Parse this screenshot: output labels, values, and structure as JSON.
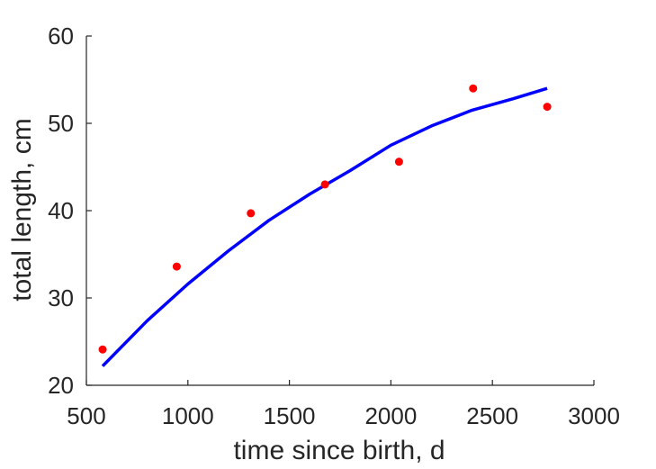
{
  "chart_data": {
    "type": "scatter",
    "title": "",
    "xlabel": "time since birth, d",
    "ylabel": "total length, cm",
    "xlim": [
      500,
      3000
    ],
    "ylim": [
      20,
      60
    ],
    "xticks": [
      500,
      1000,
      1500,
      2000,
      2500,
      3000
    ],
    "yticks": [
      20,
      30,
      40,
      50,
      60
    ],
    "grid": false,
    "legend": "none",
    "series": [
      {
        "type": "scatter",
        "color": "#ff0000",
        "x": [
          580,
          945,
          1310,
          1675,
          2040,
          2405,
          2770
        ],
        "y": [
          24.1,
          33.6,
          39.7,
          43.0,
          45.6,
          54.0,
          51.9
        ]
      },
      {
        "type": "line",
        "color": "#0000ff",
        "x": [
          580,
          800,
          1000,
          1200,
          1400,
          1600,
          1800,
          2000,
          2200,
          2400,
          2600,
          2770
        ],
        "y": [
          22.2,
          27.4,
          31.6,
          35.4,
          38.9,
          41.9,
          44.6,
          47.5,
          49.7,
          51.5,
          52.8,
          54.0
        ]
      }
    ]
  }
}
